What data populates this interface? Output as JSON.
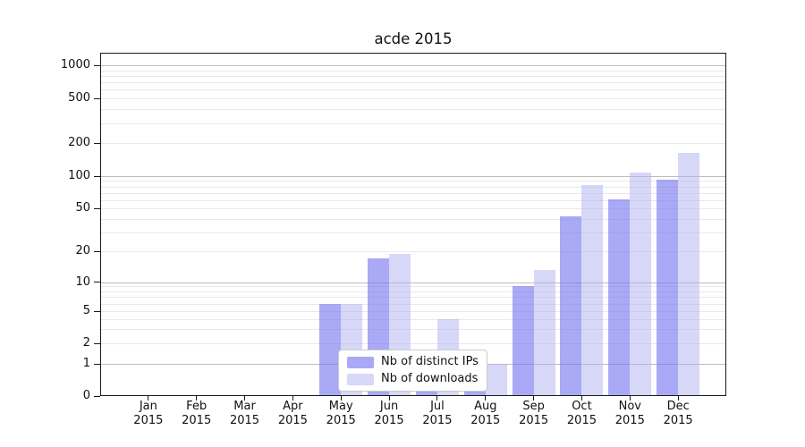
{
  "figure": {
    "title": "acde 2015",
    "background": "#ffffff"
  },
  "legend": {
    "items": [
      {
        "label": "Nb of distinct IPs",
        "swatch_color": "#a9a9f5"
      },
      {
        "label": "Nb of downloads",
        "swatch_color": "#d7d7f8"
      }
    ],
    "position": "lower center"
  },
  "chart_data": {
    "type": "bar",
    "title": "acde 2015",
    "categories": [
      "Jan 2015",
      "Feb 2015",
      "Mar 2015",
      "Apr 2015",
      "May 2015",
      "Jun 2015",
      "Jul 2015",
      "Aug 2015",
      "Sep 2015",
      "Oct 2015",
      "Nov 2015",
      "Dec 2015"
    ],
    "series": [
      {
        "name": "Nb of distinct IPs",
        "fill": "rgba(119,119,240,0.63)",
        "legend_color": "#a9a9f5",
        "values": [
          0,
          0,
          0,
          0,
          6,
          17,
          1,
          1,
          9,
          42,
          61,
          93
        ]
      },
      {
        "name": "Nb of downloads",
        "fill": "rgba(179,179,240,0.52)",
        "legend_color": "#d7d7f8",
        "values": [
          0,
          0,
          0,
          0,
          6,
          19,
          4,
          1,
          13,
          82,
          108,
          163
        ]
      }
    ],
    "yticks": [
      0,
      1,
      2,
      5,
      10,
      20,
      50,
      100,
      200,
      500,
      1000
    ],
    "yscale": "symlog: linear 0-1, logarithmic above 1",
    "ylim": [
      0,
      1300
    ],
    "xlabel": "",
    "ylabel": "",
    "grid": "horizontal major+minor",
    "legend_position": "lower center"
  },
  "colors": {
    "major_grid": "#bdbdbd",
    "minor_grid": "#e9e9e9",
    "axis": "#1a1a1a",
    "background": "#ffffff"
  }
}
